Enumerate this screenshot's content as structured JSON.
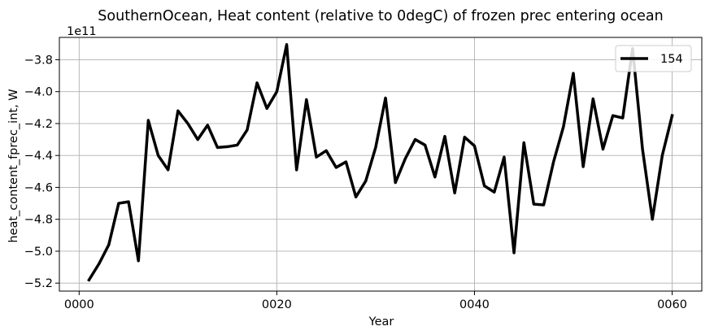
{
  "chart_data": {
    "type": "line",
    "title": "SouthernOcean, Heat content (relative to 0degC) of frozen prec entering ocean",
    "xlabel": "Year",
    "ylabel": "heat_content_fprec_int, W",
    "y_offset_label": "1e11",
    "xlim": [
      -2,
      63
    ],
    "ylim": [
      -5.25,
      -3.66
    ],
    "x_ticks": [
      0,
      20,
      40,
      60
    ],
    "x_tick_labels": [
      "0000",
      "0020",
      "0040",
      "0060"
    ],
    "y_ticks": [
      -5.2,
      -5.0,
      -4.8,
      -4.6,
      -4.4,
      -4.2,
      -4.0,
      -3.8
    ],
    "y_tick_labels": [
      "−5.2",
      "−5.0",
      "−4.8",
      "−4.6",
      "−4.4",
      "−4.2",
      "−4.0",
      "−3.8"
    ],
    "grid": true,
    "legend_position": "upper-right",
    "series": [
      {
        "name": "154",
        "color": "#000000",
        "x": [
          1,
          2,
          3,
          4,
          5,
          6,
          7,
          8,
          9,
          10,
          11,
          12,
          13,
          14,
          15,
          16,
          17,
          18,
          19,
          20,
          21,
          22,
          23,
          24,
          25,
          26,
          27,
          28,
          29,
          30,
          31,
          32,
          33,
          34,
          35,
          36,
          37,
          38,
          39,
          40,
          41,
          42,
          43,
          44,
          45,
          46,
          47,
          48,
          49,
          50,
          51,
          52,
          53,
          54,
          55,
          56,
          57,
          58,
          59,
          60
        ],
        "values": [
          -5.18,
          -5.08,
          -4.96,
          -4.7,
          -4.69,
          -5.06,
          -4.18,
          -4.4,
          -4.49,
          -4.12,
          -4.2,
          -4.3,
          -4.21,
          -4.35,
          -4.345,
          -4.335,
          -4.24,
          -3.945,
          -4.105,
          -4.0,
          -3.705,
          -4.49,
          -4.05,
          -4.41,
          -4.37,
          -4.475,
          -4.44,
          -4.66,
          -4.56,
          -4.35,
          -4.04,
          -4.57,
          -4.42,
          -4.3,
          -4.335,
          -4.535,
          -4.28,
          -4.635,
          -4.285,
          -4.34,
          -4.59,
          -4.63,
          -4.41,
          -5.01,
          -4.32,
          -4.705,
          -4.71,
          -4.44,
          -4.22,
          -3.885,
          -4.47,
          -4.045,
          -4.36,
          -4.15,
          -4.165,
          -3.73,
          -4.36,
          -4.8,
          -4.4,
          -4.15
        ]
      }
    ]
  }
}
